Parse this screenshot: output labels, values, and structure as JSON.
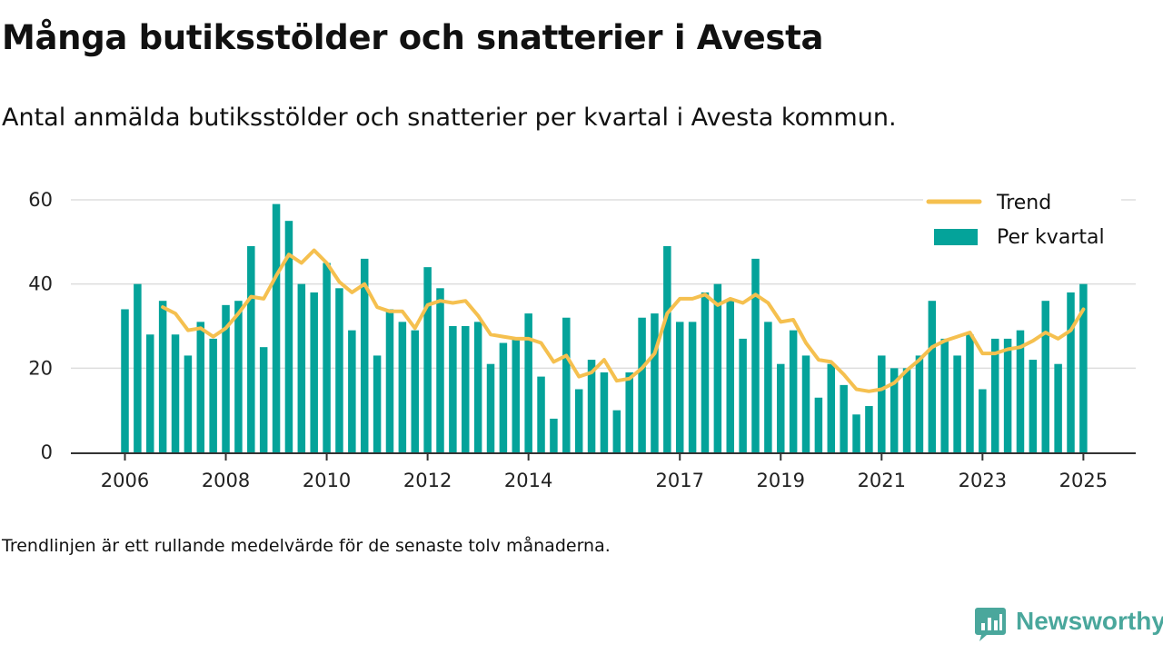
{
  "title": "Många butiksstölder och snatterier i Avesta",
  "subtitle": "Antal anmälda butiksstölder och snatterier per kvartal i Avesta kommun.",
  "footnote": "Trendlinjen är ett rullande medelvärde för de senaste tolv månaderna.",
  "brand": {
    "name": "Newsworthy"
  },
  "colors": {
    "bar": "#04a39a",
    "trend": "#f5c04f",
    "grid": "#dddddd",
    "axis": "#333333"
  },
  "chart_data": {
    "type": "bar",
    "x_start": "2006 Q1",
    "x_step": "1 kvartal",
    "x_tick_labels": [
      "2006",
      "2008",
      "2010",
      "2012",
      "2014",
      "2017",
      "2019",
      "2021",
      "2023",
      "2025"
    ],
    "y_tick_labels": [
      "0",
      "20",
      "40",
      "60"
    ],
    "ylim": [
      0,
      60
    ],
    "grid": true,
    "legend_position": "top-right",
    "legend": {
      "trend_label": "Trend",
      "bars_label": "Per kvartal"
    },
    "series": [
      {
        "name": "Per kvartal",
        "type": "bar",
        "values": [
          34,
          40,
          28,
          36,
          28,
          23,
          31,
          27,
          35,
          36,
          49,
          25,
          59,
          55,
          40,
          38,
          45,
          39,
          29,
          46,
          23,
          34,
          31,
          29,
          44,
          39,
          30,
          30,
          31,
          21,
          26,
          27,
          33,
          18,
          8,
          32,
          15,
          22,
          19,
          10,
          19,
          32,
          33,
          49,
          31,
          31,
          38,
          40,
          36,
          27,
          46,
          31,
          21,
          29,
          23,
          13,
          21,
          16,
          9,
          11,
          23,
          20,
          20,
          23,
          36,
          27,
          23,
          28,
          15,
          27,
          27,
          29,
          22,
          36,
          21,
          38,
          40
        ]
      },
      {
        "name": "Trend",
        "type": "line",
        "start_index": 3,
        "values": [
          34.5,
          33,
          29,
          29.5,
          27.5,
          29.5,
          33,
          37,
          36.5,
          42,
          47,
          45,
          48,
          45,
          40.5,
          38,
          40,
          34.5,
          33.5,
          33.5,
          29.5,
          35,
          36,
          35.5,
          36,
          32.5,
          28,
          27.5,
          27,
          27,
          26,
          21.5,
          23,
          18,
          19,
          22,
          17,
          17.5,
          20,
          23.5,
          33,
          36.5,
          36.5,
          37.5,
          35,
          36.5,
          35.5,
          37.5,
          35.5,
          31,
          31.5,
          26,
          22,
          21.5,
          18.5,
          15,
          14.5,
          15,
          16.5,
          19.5,
          22,
          25,
          26.5,
          27.5,
          28.5,
          23.5,
          23.5,
          24.5,
          25,
          26.5,
          28.5,
          27,
          29,
          34
        ]
      }
    ]
  }
}
